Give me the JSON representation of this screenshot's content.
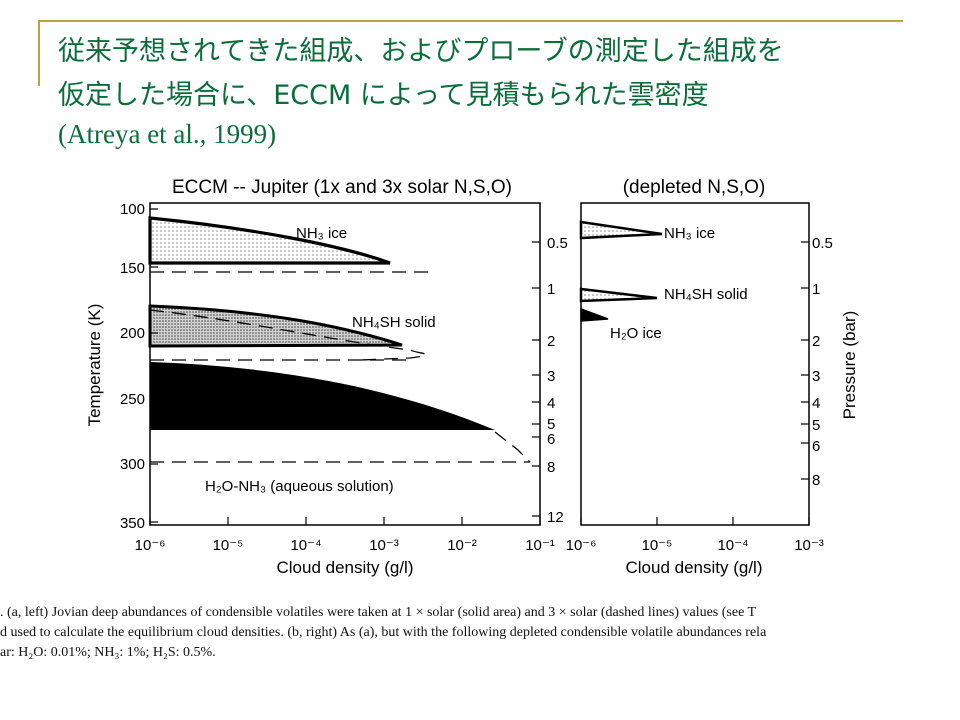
{
  "slide": {
    "title_line1": "従来予想されてきた組成、およびプローブの測定した組成を",
    "title_line2": "仮定した場合に、ECCM によって見積もられた雲密度",
    "citation": "(Atreya et al., 1999)"
  },
  "caption": {
    "line1": ". (a, left) Jovian deep abundances of condensible volatiles were taken at 1 × solar (solid area) and 3 × solar (dashed lines) values (see T",
    "line2": "d used to calculate the equilibrium cloud densities. (b, right) As (a), but with the following depleted condensible volatile abundances rela",
    "line3": "ar: H₂O: 0.01%; NH₃: 1%; H₂S: 0.5%."
  },
  "colors": {
    "title": "#0b6e3a",
    "rule": "#b8a640"
  },
  "chart_data": [
    {
      "type": "area",
      "title": "ECCM -- Jupiter (1x and 3x solar N,S,O)",
      "xlabel": "Cloud density (g/l)",
      "ylabel": "Temperature (K)",
      "y2label": "",
      "x_scale": "log",
      "xlim": [
        1e-06,
        0.1
      ],
      "ylim": [
        350,
        100
      ],
      "x_ticks": [
        "10⁻⁶",
        "10⁻⁵",
        "10⁻⁴",
        "10⁻³",
        "10⁻²",
        "10⁻¹"
      ],
      "y_ticks": [
        "100",
        "150",
        "200",
        "250",
        "300",
        "350"
      ],
      "y2_ticks": [
        "0.5",
        "1",
        "2",
        "3",
        "4",
        "5",
        "6",
        "8",
        "12"
      ],
      "y2_tick_temps": [
        128,
        163,
        204,
        231,
        252,
        269,
        283,
        305,
        346
      ],
      "series": [
        {
          "name": "NH₃ ice",
          "solid_area": {
            "top_boundary": [
              [
                1e-06,
                112
              ],
              [
                1e-05,
                118
              ],
              [
                0.0001,
                127
              ],
              [
                0.0003,
                134
              ],
              [
                0.001,
                141
              ],
              [
                0.0015,
                143
              ]
            ],
            "base_temp": 143
          },
          "dashed": {
            "top_boundary": [
              [
                1e-06,
                152
              ],
              [
                0.001,
                150
              ],
              [
                0.002,
                150
              ],
              [
                0.004,
                151
              ]
            ]
          }
        },
        {
          "name": "NH₄SH solid",
          "solid_area": {
            "top_boundary": [
              [
                1e-06,
                178
              ],
              [
                1e-05,
                182
              ],
              [
                0.0001,
                188
              ],
              [
                0.001,
                200
              ],
              [
                0.002,
                206
              ]
            ],
            "base_temp": 210
          },
          "dashed": {
            "top_boundary": [
              [
                1e-06,
                182
              ],
              [
                0.0001,
                196
              ],
              [
                0.001,
                210
              ],
              [
                0.002,
                213
              ],
              [
                0.005,
                220
              ]
            ],
            "base_temp": 220
          }
        },
        {
          "name": "H₂O-NH₃ (aqueous solution)",
          "solid_area": {
            "top_boundary": [
              [
                1e-06,
                215
              ],
              [
                1e-05,
                218
              ],
              [
                0.0001,
                225
              ],
              [
                0.001,
                240
              ],
              [
                0.01,
                262
              ],
              [
                0.03,
                275
              ]
            ],
            "base_temp": 275
          },
          "dashed": {
            "top_boundary": [
              [
                0.03,
                275
              ],
              [
                0.05,
                290
              ],
              [
                0.1,
                300
              ]
            ],
            "base_temp": 300
          }
        }
      ]
    },
    {
      "type": "area",
      "title": "(depleted N,S,O)",
      "xlabel": "Cloud density (g/l)",
      "ylabel": "",
      "y2label": "Pressure (bar)",
      "x_scale": "log",
      "xlim": [
        1e-06,
        0.001
      ],
      "x_ticks": [
        "10⁻⁶",
        "10⁻⁵",
        "10⁻⁴",
        "10⁻³"
      ],
      "y2_ticks": [
        "0.5",
        "1",
        "2",
        "3",
        "4",
        "5",
        "6",
        "8"
      ],
      "series": [
        {
          "name": "NH₃ ice",
          "peak_density": 1e-05
        },
        {
          "name": "NH₄SH solid",
          "peak_density": 1e-05
        },
        {
          "name": "H₂O ice",
          "peak_density": 2e-06
        }
      ]
    }
  ]
}
